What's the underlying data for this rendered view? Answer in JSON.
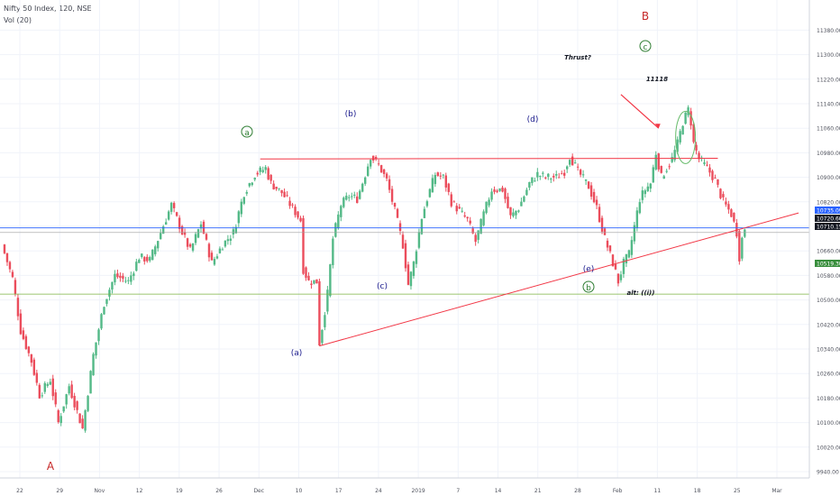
{
  "header": {
    "symbol_line": "Nifty 50 Index, 120, NSE",
    "volume_line": "Vol (20)"
  },
  "colors": {
    "up": "#53b987",
    "down": "#eb4d5c",
    "background": "#ffffff",
    "grid": "#f0f3fa",
    "axis_text": "#50535e",
    "trendline": "#f23645",
    "wave_label_blue": "#1a1a8c",
    "wave_label_red": "#c62828",
    "wave_label_green": "#2e7d32",
    "support_line": "#7cb342",
    "resistance_blue": "#2962ff",
    "badge_blue": "#2962ff",
    "badge_dark": "#131722",
    "badge_green": "#388e3c"
  },
  "chart_data": {
    "type": "candlestick",
    "symbol": "Nifty 50 Index",
    "interval": "120",
    "exchange": "NSE",
    "y_axis": {
      "scale": "linear",
      "range": [
        9940,
        11440
      ],
      "tick_labels": [
        "11380.00",
        "11300.00",
        "11220.00",
        "11140.00",
        "11060.00",
        "10980.00",
        "10900.00",
        "10820.00",
        "10740.00",
        "10660.00",
        "10580.00",
        "10500.00",
        "10420.00",
        "10340.00",
        "10260.00",
        "10180.00",
        "10100.00",
        "10020.00",
        "9940.00"
      ],
      "price_badges": [
        {
          "value": "10735.09",
          "style": "blue"
        },
        {
          "value": "10720.60",
          "style": "dark"
        },
        {
          "value": "10710.15",
          "style": "dark"
        },
        {
          "value": "10519.30",
          "style": "green"
        }
      ]
    },
    "x_axis": {
      "tick_labels": [
        "22",
        "29",
        "Nov",
        "12",
        "19",
        "26",
        "Dec",
        "10",
        "17",
        "24",
        "2019",
        "7",
        "14",
        "21",
        "28",
        "Feb",
        "11",
        "18",
        "25",
        "Mar"
      ]
    },
    "grid": true,
    "price_path": [
      [
        0,
        10680
      ],
      [
        4,
        10570
      ],
      [
        7,
        10400
      ],
      [
        11,
        10300
      ],
      [
        14,
        10190
      ],
      [
        18,
        10240
      ],
      [
        21,
        10100
      ],
      [
        25,
        10220
      ],
      [
        30,
        10080
      ],
      [
        34,
        10320
      ],
      [
        38,
        10490
      ],
      [
        42,
        10580
      ],
      [
        47,
        10560
      ],
      [
        51,
        10640
      ],
      [
        55,
        10630
      ],
      [
        59,
        10720
      ],
      [
        63,
        10810
      ],
      [
        67,
        10720
      ],
      [
        70,
        10660
      ],
      [
        74,
        10750
      ],
      [
        78,
        10620
      ],
      [
        82,
        10680
      ],
      [
        86,
        10720
      ],
      [
        90,
        10850
      ],
      [
        94,
        10910
      ],
      [
        98,
        10930
      ],
      [
        100,
        10880
      ],
      [
        104,
        10850
      ],
      [
        108,
        10800
      ],
      [
        111,
        10760
      ],
      [
        112,
        10600
      ],
      [
        114,
        10560
      ],
      [
        117,
        10560
      ],
      [
        118,
        10360
      ],
      [
        119,
        10410
      ],
      [
        121,
        10520
      ],
      [
        123,
        10700
      ],
      [
        126,
        10810
      ],
      [
        129,
        10840
      ],
      [
        132,
        10830
      ],
      [
        135,
        10910
      ],
      [
        137,
        10970
      ],
      [
        140,
        10940
      ],
      [
        143,
        10890
      ],
      [
        146,
        10790
      ],
      [
        149,
        10680
      ],
      [
        151,
        10550
      ],
      [
        153,
        10620
      ],
      [
        156,
        10770
      ],
      [
        158,
        10830
      ],
      [
        161,
        10910
      ],
      [
        164,
        10900
      ],
      [
        167,
        10820
      ],
      [
        170,
        10790
      ],
      [
        173,
        10760
      ],
      [
        176,
        10690
      ],
      [
        179,
        10780
      ],
      [
        182,
        10860
      ],
      [
        186,
        10860
      ],
      [
        189,
        10770
      ],
      [
        192,
        10800
      ],
      [
        196,
        10880
      ],
      [
        199,
        10910
      ],
      [
        202,
        10900
      ],
      [
        206,
        10900
      ],
      [
        209,
        10920
      ],
      [
        211,
        10970
      ],
      [
        214,
        10920
      ],
      [
        218,
        10870
      ],
      [
        221,
        10800
      ],
      [
        224,
        10700
      ],
      [
        227,
        10620
      ],
      [
        229,
        10560
      ],
      [
        231,
        10620
      ],
      [
        233,
        10650
      ],
      [
        235,
        10740
      ],
      [
        237,
        10830
      ],
      [
        239,
        10860
      ],
      [
        241,
        10880
      ],
      [
        243,
        10980
      ],
      [
        245,
        10900
      ],
      [
        247,
        10930
      ],
      [
        249,
        10960
      ],
      [
        251,
        11010
      ],
      [
        253,
        11080
      ],
      [
        255,
        11120
      ],
      [
        256,
        11080
      ],
      [
        257,
        11010
      ],
      [
        259,
        10960
      ],
      [
        262,
        10930
      ],
      [
        265,
        10890
      ],
      [
        268,
        10820
      ],
      [
        271,
        10780
      ],
      [
        273,
        10720
      ],
      [
        274,
        10640
      ],
      [
        275,
        10700
      ],
      [
        276,
        10735
      ]
    ],
    "annotations": [
      {
        "text": "A",
        "role": "wave",
        "color": "red"
      },
      {
        "text": "B",
        "role": "wave",
        "color": "red"
      },
      {
        "text": "(a)",
        "role": "wave",
        "color": "blue"
      },
      {
        "text": "(b)",
        "role": "wave",
        "color": "blue"
      },
      {
        "text": "(c)",
        "role": "wave",
        "color": "blue"
      },
      {
        "text": "(d)",
        "role": "wave",
        "color": "blue"
      },
      {
        "text": "(e)",
        "role": "wave",
        "color": "blue"
      },
      {
        "text": "a",
        "role": "wave-circled",
        "color": "green"
      },
      {
        "text": "b",
        "role": "wave-circled",
        "color": "green"
      },
      {
        "text": "c",
        "role": "wave-circled",
        "color": "green"
      },
      {
        "text": "Thrust?",
        "role": "note"
      },
      {
        "text": "11118",
        "role": "note"
      },
      {
        "text": "alt: ((i))",
        "role": "note"
      }
    ],
    "lines": [
      {
        "name": "resistance",
        "from": {
          "bar": 96,
          "price": 10960
        },
        "to": {
          "bar": 266,
          "price": 10962
        }
      },
      {
        "name": "rising-support",
        "from": {
          "bar": 118,
          "price": 10350
        },
        "to": {
          "bar": 276,
          "price": 10735
        }
      },
      {
        "name": "blue-horizontal",
        "price": 10735
      },
      {
        "name": "grey-horizontal",
        "price": 10720
      },
      {
        "name": "green-horizontal",
        "price": 10519
      }
    ]
  }
}
